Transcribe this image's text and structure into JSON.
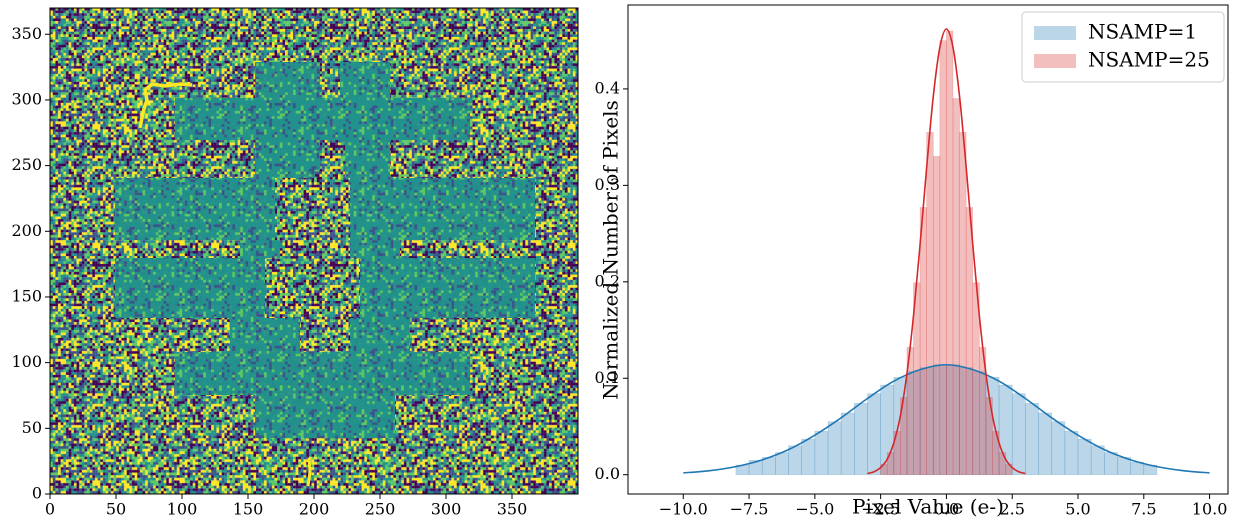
{
  "chart_data": [
    {
      "type": "image",
      "xlim": [
        0,
        400
      ],
      "ylim": [
        0,
        370
      ],
      "xticks": [
        0,
        50,
        100,
        150,
        200,
        250,
        300,
        350
      ],
      "yticks": [
        0,
        50,
        100,
        150,
        200,
        250,
        300,
        350
      ],
      "colormap": [
        "#440154",
        "#3b528b",
        "#21918c",
        "#5ec962",
        "#fde725"
      ]
    },
    {
      "type": "histogram",
      "xlabel": "Pixel Value (e-)",
      "ylabel": "Normalized Number of Pixels",
      "xlim": [
        -12.1,
        10.7
      ],
      "ylim": [
        -0.02,
        0.487
      ],
      "xticks": [
        {
          "value": -10,
          "label": "−10.0"
        },
        {
          "value": -7.5,
          "label": "−7.5"
        },
        {
          "value": -5,
          "label": "−5.0"
        },
        {
          "value": -2.5,
          "label": "−2.5"
        },
        {
          "value": 0,
          "label": "0.0"
        },
        2.5,
        {
          "value": 5,
          "label": "5.0"
        },
        7.5,
        {
          "value": 10,
          "label": "10.0"
        }
      ],
      "yticks": [
        {
          "value": 0,
          "label": "0.0"
        },
        0.1,
        0.2,
        0.3,
        0.4
      ],
      "legend": "upper right",
      "series": [
        {
          "name": "NSAMP=1",
          "color": "#1f77b4",
          "bins": [
            -8,
            -7.5,
            -7,
            -6.5,
            -6,
            -5.5,
            -5,
            -4.5,
            -4,
            -3.5,
            -3,
            -2.5,
            -2,
            -1.5,
            -1,
            -0.5,
            0,
            0.5,
            1,
            1.5,
            2,
            2.5,
            3,
            3.5,
            4,
            4.5,
            5,
            5.5,
            6,
            6.5,
            7,
            7.5,
            8
          ],
          "values": [
            0.01,
            0.015,
            0.018,
            0.023,
            0.03,
            0.037,
            0.045,
            0.055,
            0.064,
            0.074,
            0.084,
            0.093,
            0.101,
            0.107,
            0.111,
            0.114,
            0.114,
            0.111,
            0.107,
            0.101,
            0.093,
            0.084,
            0.074,
            0.064,
            0.055,
            0.045,
            0.037,
            0.03,
            0.023,
            0.018,
            0.013,
            0.01
          ]
        },
        {
          "name": "NSAMP=25",
          "color": "#d62728",
          "bins": [
            -2.5,
            -2.25,
            -2,
            -1.75,
            -1.5,
            -1.25,
            -1,
            -0.75,
            -0.5,
            -0.25,
            0,
            0.25,
            0.5,
            0.75,
            1,
            1.25,
            1.5,
            1.75,
            2,
            2.25,
            2.5
          ],
          "values": [
            0.011,
            0.023,
            0.045,
            0.08,
            0.132,
            0.199,
            0.277,
            0.355,
            0.33,
            0.45,
            0.46,
            0.39,
            0.355,
            0.277,
            0.199,
            0.132,
            0.08,
            0.045,
            0.023,
            0.011
          ]
        }
      ],
      "lines": [
        {
          "color": "#1f77b4",
          "x": [
            -10,
            -9,
            -8,
            -7,
            -6,
            -5,
            -4,
            -3,
            -2,
            -1,
            0,
            1,
            2,
            3,
            4,
            5,
            6,
            7,
            8,
            9,
            10
          ],
          "values": [
            0.0019,
            0.0042,
            0.0084,
            0.0154,
            0.026,
            0.041,
            0.059,
            0.079,
            0.097,
            0.109,
            0.114,
            0.109,
            0.097,
            0.079,
            0.059,
            0.041,
            0.026,
            0.0154,
            0.0084,
            0.0042,
            0.0019
          ]
        },
        {
          "color": "#d62728",
          "x": [
            -3,
            -2.75,
            -2.5,
            -2.25,
            -2,
            -1.75,
            -1.5,
            -1.25,
            -1,
            -0.75,
            -0.5,
            -0.25,
            0,
            0.25,
            0.5,
            0.75,
            1,
            1.25,
            1.5,
            1.75,
            2,
            2.25,
            2.5,
            2.75,
            3
          ],
          "values": [
            0.0012,
            0.0031,
            0.0074,
            0.016,
            0.033,
            0.061,
            0.105,
            0.165,
            0.239,
            0.319,
            0.392,
            0.443,
            0.462,
            0.443,
            0.392,
            0.319,
            0.239,
            0.165,
            0.105,
            0.061,
            0.033,
            0.016,
            0.0074,
            0.0031,
            0.0012
          ]
        }
      ]
    }
  ]
}
